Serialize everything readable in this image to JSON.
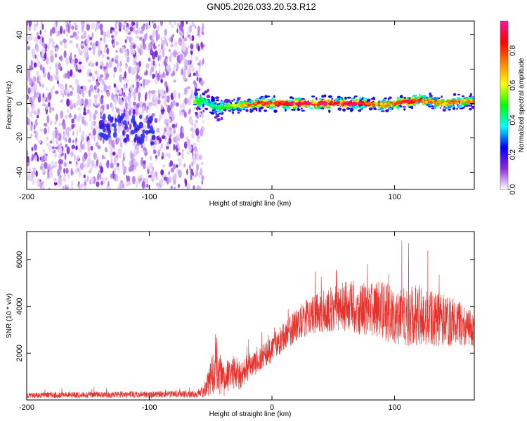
{
  "title": "GN05.2026.033.20.53.R12",
  "chart_data": [
    {
      "type": "heatmap",
      "name": "spectrogram",
      "xlabel": "Height of straight line (km)",
      "ylabel": "Frequency (Hz)",
      "xlim": [
        -200,
        165
      ],
      "ylim": [
        -50,
        48
      ],
      "xticks": [
        -200,
        -100,
        0,
        100
      ],
      "yticks": [
        -40,
        -20,
        0,
        20,
        40
      ],
      "colorbar": {
        "label": "Normalized spectral amplitude",
        "range": [
          0,
          0.97
        ],
        "ticks": [
          "0.0",
          "0.2",
          "0.4",
          "0.6",
          "0.8"
        ],
        "tick_values": [
          0.0,
          0.2,
          0.4,
          0.6,
          0.8
        ],
        "colors": [
          "#ffffff",
          "#8a2be2",
          "#0000ff",
          "#00ffff",
          "#00ff00",
          "#ffff00",
          "#ff8000",
          "#ff0000",
          "#ff1493"
        ]
      },
      "noise_region_x": [
        -200,
        -60
      ],
      "dispersed_cluster": {
        "x": [
          -140,
          -95
        ],
        "y": [
          -20,
          -5
        ]
      },
      "signal_track": {
        "x": [
          -63,
          -55,
          -50,
          -45,
          -40,
          -30,
          -20,
          -10,
          0,
          10,
          20,
          40,
          60,
          80,
          90,
          100,
          110,
          120,
          130,
          140,
          150,
          165
        ],
        "frequency": [
          1,
          2,
          -1,
          -3,
          -2,
          -1,
          -1,
          0,
          0,
          0,
          0,
          0,
          0,
          0,
          -1,
          0,
          1,
          2,
          1,
          0,
          1,
          1
        ],
        "amplitude": [
          0.5,
          0.35,
          0.4,
          0.45,
          0.5,
          0.6,
          0.7,
          0.8,
          0.9,
          0.95,
          0.95,
          0.95,
          0.9,
          0.85,
          0.7,
          0.75,
          0.85,
          0.8,
          0.7,
          0.7,
          0.75,
          0.7
        ]
      }
    },
    {
      "type": "line",
      "name": "snr",
      "xlabel": "Height of straight line (km)",
      "ylabel": "SNR (10 * v/v)",
      "xlim": [
        -200,
        165
      ],
      "ylim": [
        0,
        7200
      ],
      "xticks": [
        -200,
        -100,
        0,
        100
      ],
      "yticks": [
        2000,
        4000,
        6000
      ],
      "color": "#e8312c",
      "envelope": {
        "x": [
          -200,
          -60,
          -55,
          -50,
          -45,
          -40,
          -35,
          -30,
          -25,
          -20,
          -10,
          0,
          10,
          20,
          30,
          40,
          50,
          60,
          70,
          80,
          90,
          100,
          110,
          120,
          130,
          140,
          150,
          160,
          165
        ],
        "mean": [
          200,
          250,
          400,
          1000,
          1500,
          800,
          1100,
          1200,
          1000,
          1400,
          1700,
          2200,
          2700,
          3200,
          3600,
          3800,
          3900,
          4000,
          3950,
          3900,
          3800,
          3700,
          3600,
          3600,
          3500,
          3400,
          3300,
          3100,
          3000
        ],
        "spread": [
          120,
          150,
          300,
          800,
          1200,
          700,
          700,
          700,
          600,
          600,
          500,
          600,
          600,
          700,
          800,
          900,
          1000,
          1100,
          1150,
          1200,
          1250,
          1300,
          1300,
          1300,
          1200,
          1100,
          1000,
          800,
          700
        ]
      }
    }
  ]
}
